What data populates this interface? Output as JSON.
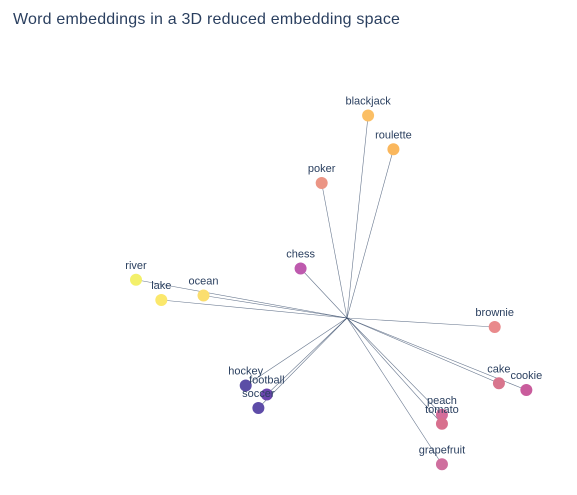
{
  "chart_data": {
    "type": "scatter",
    "title": "Word embeddings in a 3D reduced embedding space",
    "grid": false,
    "legend": "none",
    "origin_color": "#2a3f5f",
    "points": [
      {
        "word": "blackjack",
        "x": 0.1,
        "y": 0.9,
        "color": "#fbbf65"
      },
      {
        "word": "roulette",
        "x": 0.22,
        "y": 0.75,
        "color": "#fab75d"
      },
      {
        "word": "poker",
        "x": -0.12,
        "y": 0.6,
        "color": "#eb9585"
      },
      {
        "word": "chess",
        "x": -0.22,
        "y": 0.22,
        "color": "#be5aae"
      },
      {
        "word": "river",
        "x": -1.0,
        "y": 0.17,
        "color": "#f3f06a"
      },
      {
        "word": "ocean",
        "x": -0.68,
        "y": 0.1,
        "color": "#fbde6e"
      },
      {
        "word": "lake",
        "x": -0.88,
        "y": 0.08,
        "color": "#fbe86c"
      },
      {
        "word": "brownie",
        "x": 0.7,
        "y": -0.04,
        "color": "#e98a8c"
      },
      {
        "word": "cake",
        "x": 0.72,
        "y": -0.29,
        "color": "#d8758d"
      },
      {
        "word": "cookie",
        "x": 0.85,
        "y": -0.32,
        "color": "#c95c9c"
      },
      {
        "word": "hockey",
        "x": -0.48,
        "y": -0.3,
        "color": "#5b4ea6"
      },
      {
        "word": "football",
        "x": -0.38,
        "y": -0.34,
        "color": "#6a45ad"
      },
      {
        "word": "soccer",
        "x": -0.42,
        "y": -0.4,
        "color": "#5e4ca8"
      },
      {
        "word": "peach",
        "x": 0.45,
        "y": -0.43,
        "color": "#d56e9a"
      },
      {
        "word": "tomato",
        "x": 0.45,
        "y": -0.47,
        "color": "#d8708e"
      },
      {
        "word": "grapefruit",
        "x": 0.45,
        "y": -0.65,
        "color": "#cf6f9e"
      }
    ]
  }
}
